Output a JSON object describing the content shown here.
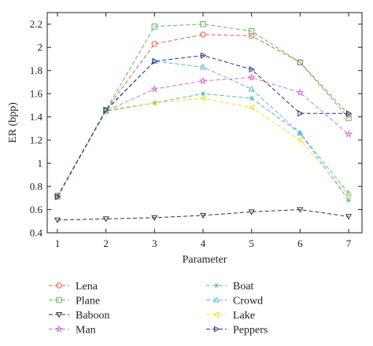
{
  "chart_data": {
    "type": "line",
    "x": [
      1,
      2,
      3,
      4,
      5,
      6,
      7
    ],
    "xlabel": "Parameter",
    "ylabel": "ER (bpp)",
    "xlim": [
      1,
      7
    ],
    "ylim": [
      0.4,
      2.3
    ],
    "xticks": [
      1,
      2,
      3,
      4,
      5,
      6,
      7
    ],
    "yticks": [
      0.4,
      0.6,
      0.8,
      1,
      1.2,
      1.4,
      1.6,
      1.8,
      2,
      2.2
    ],
    "ytick_labels": [
      "0.4",
      "0.6",
      "0.8",
      "1",
      "1.2",
      "1.4",
      "1.6",
      "1.8",
      "2",
      "2.2"
    ],
    "grid": false,
    "legend_position": "bottom",
    "series": [
      {
        "name": "Lena",
        "color": "#e8623f",
        "marker": "circle",
        "values": [
          0.71,
          1.46,
          2.03,
          2.11,
          2.1,
          1.87,
          1.42
        ]
      },
      {
        "name": "Plane",
        "color": "#5cb85c",
        "marker": "square",
        "values": [
          0.72,
          1.46,
          2.18,
          2.2,
          2.14,
          1.87,
          1.39
        ]
      },
      {
        "name": "Baboon",
        "color": "#333333",
        "marker": "triangle-down",
        "values": [
          0.51,
          0.52,
          0.53,
          0.55,
          0.58,
          0.6,
          0.54
        ]
      },
      {
        "name": "Man",
        "color": "#d96fd3",
        "marker": "star",
        "values": [
          0.71,
          1.45,
          1.64,
          1.71,
          1.74,
          1.61,
          1.25
        ]
      },
      {
        "name": "Boat",
        "color": "#4fb8b0",
        "marker": "asterisk",
        "values": [
          0.71,
          1.45,
          1.52,
          1.6,
          1.56,
          1.26,
          0.68
        ]
      },
      {
        "name": "Crowd",
        "color": "#5ab4e6",
        "marker": "triangle-up",
        "values": [
          0.71,
          1.45,
          1.88,
          1.83,
          1.64,
          1.26,
          0.74
        ]
      },
      {
        "name": "Lake",
        "color": "#f0e020",
        "marker": "triangle-left",
        "values": [
          0.71,
          1.46,
          1.52,
          1.56,
          1.48,
          1.2,
          0.72
        ]
      },
      {
        "name": "Peppers",
        "color": "#2b2e8f",
        "marker": "triangle-right",
        "values": [
          0.71,
          1.46,
          1.88,
          1.93,
          1.81,
          1.43,
          1.43
        ]
      }
    ]
  }
}
